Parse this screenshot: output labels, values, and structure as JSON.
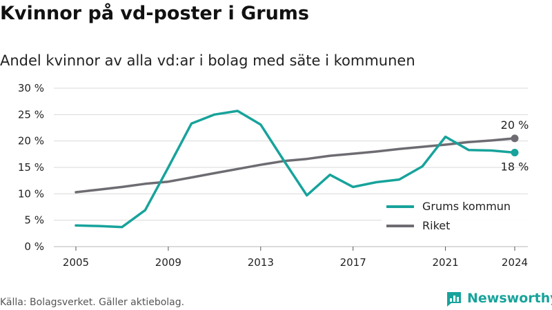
{
  "title": "Kvinnor på vd-poster i Grums",
  "subtitle": "Andel kvinnor av alla vd:ar i bolag med säte i kommunen",
  "source": "Källa: Bolagsverket. Gäller aktiebolag.",
  "brand": "Newsworthy",
  "colors": {
    "grums": "#17a39b",
    "riket": "#6e6c72",
    "brand": "#17a39b",
    "grid": "#d9d9d9"
  },
  "chart_data": {
    "type": "line",
    "title": "Kvinnor på vd-poster i Grums",
    "subtitle": "Andel kvinnor av alla vd:ar i bolag med säte i kommunen",
    "xlabel": "",
    "ylabel": "",
    "xlim": [
      2005,
      2024
    ],
    "ylim": [
      0,
      30
    ],
    "x_ticks": [
      2005,
      2009,
      2013,
      2017,
      2021,
      2024
    ],
    "y_ticks": [
      0,
      5,
      10,
      15,
      20,
      25,
      30
    ],
    "y_tick_labels": [
      "0 %",
      "5 %",
      "10 %",
      "15 %",
      "20 %",
      "25 %",
      "30 %"
    ],
    "grid": "horizontal",
    "legend_position": "bottom-right",
    "x": [
      2005,
      2006,
      2007,
      2008,
      2009,
      2010,
      2011,
      2012,
      2013,
      2014,
      2015,
      2016,
      2017,
      2018,
      2019,
      2020,
      2021,
      2022,
      2023,
      2024
    ],
    "series": [
      {
        "name": "Grums kommun",
        "color": "#17a39b",
        "values": [
          4.0,
          3.9,
          3.7,
          6.9,
          15.0,
          23.3,
          25.0,
          25.7,
          23.1,
          16.3,
          9.7,
          13.6,
          11.3,
          12.2,
          12.7,
          15.2,
          20.8,
          18.3,
          18.2,
          17.8
        ],
        "end_label": "18 %"
      },
      {
        "name": "Riket",
        "color": "#6e6c72",
        "values": [
          10.3,
          10.8,
          11.3,
          11.9,
          12.3,
          13.1,
          13.9,
          14.7,
          15.5,
          16.2,
          16.6,
          17.2,
          17.6,
          18.0,
          18.5,
          18.9,
          19.3,
          19.8,
          20.1,
          20.5
        ],
        "end_label": "20 %"
      }
    ]
  }
}
